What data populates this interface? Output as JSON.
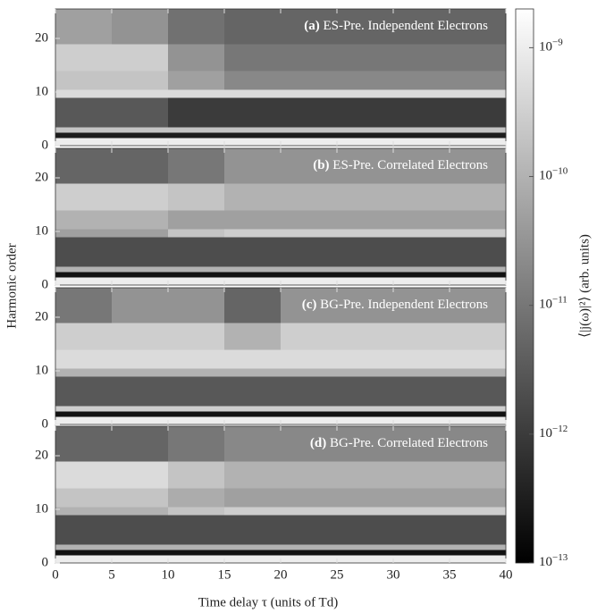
{
  "chart_data": {
    "type": "heatmap",
    "xlabel": "Time delay τ (units of Td)",
    "ylabel": "Harmonic order",
    "xlim": [
      0,
      40
    ],
    "xticks": [
      0,
      5,
      10,
      15,
      20,
      25,
      30,
      35,
      40
    ],
    "ylim": [
      0,
      25.5
    ],
    "yticks": [
      0,
      10,
      20
    ],
    "x_bins": [
      0,
      5,
      10,
      15,
      20,
      25,
      30,
      35,
      40
    ],
    "y_bins": [
      0,
      1.5,
      2.5,
      3.5,
      9,
      10.5,
      14,
      19,
      25.5
    ],
    "color_scale": {
      "label": "⟨|j(ω)|²⟩ (arb. units)",
      "log": true,
      "lim": [
        1e-13,
        2e-09
      ],
      "ticks": [
        {
          "value": 1e-13,
          "label": "10−13"
        },
        {
          "value": 1e-12,
          "label": "10−12"
        },
        {
          "value": 1e-11,
          "label": "10−11"
        },
        {
          "value": 1e-10,
          "label": "10−10"
        },
        {
          "value": 1e-09,
          "label": "10−9"
        }
      ]
    },
    "panels": [
      {
        "title": "(a) ES-Pre. Independent Electrons",
        "values": [
          [
            1e-09,
            1e-09,
            1e-09,
            1e-09,
            1e-09,
            1e-09,
            1e-09,
            1e-09
          ],
          [
            3e-13,
            3e-13,
            3e-13,
            3e-13,
            3e-13,
            3e-13,
            3e-13,
            3e-13
          ],
          [
            2e-10,
            2e-10,
            2e-10,
            2e-10,
            2e-10,
            2e-10,
            2e-10,
            2e-10
          ],
          [
            3e-12,
            3e-12,
            1e-12,
            1e-12,
            1e-12,
            1e-12,
            1e-12,
            1e-12
          ],
          [
            5e-10,
            5e-10,
            5e-10,
            5e-10,
            5e-10,
            5e-10,
            5e-10,
            5e-10
          ],
          [
            2e-10,
            2e-10,
            5e-11,
            2e-11,
            2e-11,
            2e-11,
            2e-11,
            2e-11
          ],
          [
            3e-10,
            3e-10,
            3e-11,
            1e-11,
            1e-11,
            1e-11,
            1e-11,
            1e-11
          ],
          [
            5e-11,
            3e-11,
            8e-12,
            5e-12,
            5e-12,
            5e-12,
            5e-12,
            5e-12
          ]
        ]
      },
      {
        "title": "(b) ES-Pre. Correlated Electrons",
        "values": [
          [
            1e-09,
            1e-09,
            1e-09,
            1e-09,
            1e-09,
            1e-09,
            1e-09,
            1e-09
          ],
          [
            2e-13,
            2e-13,
            2e-13,
            2e-13,
            2e-13,
            2e-13,
            2e-13,
            2e-13
          ],
          [
            1e-10,
            1e-10,
            1e-10,
            1e-10,
            1e-10,
            1e-10,
            1e-10,
            1e-10
          ],
          [
            2e-12,
            2e-12,
            2e-12,
            2e-12,
            2e-12,
            2e-12,
            2e-12,
            2e-12
          ],
          [
            5e-11,
            5e-11,
            2e-10,
            3e-10,
            3e-10,
            3e-10,
            3e-10,
            3e-10
          ],
          [
            1e-10,
            1e-10,
            5e-11,
            5e-11,
            5e-11,
            5e-11,
            5e-11,
            5e-11
          ],
          [
            3e-10,
            3e-10,
            2e-10,
            1e-10,
            1e-10,
            1e-10,
            1e-10,
            1e-10
          ],
          [
            5e-12,
            5e-12,
            1e-11,
            3e-11,
            3e-11,
            3e-11,
            3e-11,
            3e-11
          ]
        ]
      },
      {
        "title": "(c) BG-Pre. Independent Electrons",
        "values": [
          [
            1e-09,
            1e-09,
            1e-09,
            1e-09,
            1e-09,
            1e-09,
            1e-09,
            1e-09
          ],
          [
            2e-13,
            2e-13,
            2e-13,
            2e-13,
            2e-13,
            2e-13,
            2e-13,
            2e-13
          ],
          [
            3e-10,
            3e-10,
            3e-10,
            3e-10,
            3e-10,
            3e-10,
            3e-10,
            3e-10
          ],
          [
            3e-12,
            3e-12,
            3e-12,
            3e-12,
            3e-12,
            3e-12,
            3e-12,
            3e-12
          ],
          [
            1e-10,
            1e-10,
            1e-10,
            1e-10,
            1e-10,
            1e-10,
            1e-10,
            1e-10
          ],
          [
            5e-10,
            5e-10,
            5e-10,
            5e-10,
            5e-10,
            5e-10,
            5e-10,
            5e-10
          ],
          [
            3e-10,
            3e-10,
            3e-10,
            1e-10,
            3e-10,
            3e-10,
            3e-10,
            3e-10
          ],
          [
            1e-11,
            3e-11,
            3e-11,
            5e-12,
            3e-11,
            3e-11,
            3e-11,
            3e-11
          ]
        ]
      },
      {
        "title": "(d) BG-Pre. Correlated Electrons",
        "values": [
          [
            1e-09,
            1e-09,
            1e-09,
            1e-09,
            1e-09,
            1e-09,
            1e-09,
            1e-09
          ],
          [
            2e-13,
            2e-13,
            2e-13,
            2e-13,
            2e-13,
            2e-13,
            2e-13,
            2e-13
          ],
          [
            1e-10,
            1e-10,
            1e-10,
            1e-10,
            1e-10,
            1e-10,
            1e-10,
            1e-10
          ],
          [
            2e-12,
            2e-12,
            2e-12,
            2e-12,
            2e-12,
            2e-12,
            2e-12,
            2e-12
          ],
          [
            1e-10,
            1e-10,
            2e-10,
            3e-10,
            3e-10,
            3e-10,
            3e-10,
            3e-10
          ],
          [
            2e-10,
            2e-10,
            8e-11,
            5e-11,
            5e-11,
            5e-11,
            5e-11,
            5e-11
          ],
          [
            5e-10,
            5e-10,
            2e-10,
            1e-10,
            1e-10,
            1e-10,
            1e-10,
            1e-10
          ],
          [
            5e-12,
            5e-12,
            1e-11,
            2e-11,
            2e-11,
            2e-11,
            2e-11,
            2e-11
          ]
        ]
      }
    ]
  }
}
